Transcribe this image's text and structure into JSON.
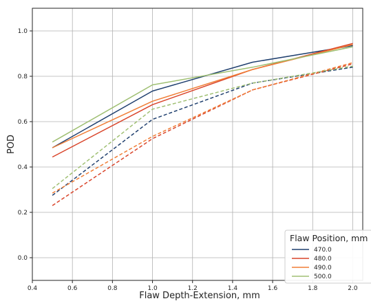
{
  "chart_data": {
    "type": "line",
    "xlabel": "Flaw Depth-Extension, mm",
    "ylabel": "POD",
    "xlim": [
      0.4,
      2.05
    ],
    "ylim": [
      -0.1,
      1.1
    ],
    "xticks": [
      0.4,
      0.6,
      0.8,
      1.0,
      1.2,
      1.4,
      1.6,
      1.8,
      2.0
    ],
    "xtick_labels": [
      "0.4",
      "0.6",
      "0.8",
      "1.0",
      "1.2",
      "1.4",
      "1.6",
      "1.8",
      "2.0"
    ],
    "yticks": [
      0.0,
      0.2,
      0.4,
      0.6,
      0.8,
      1.0
    ],
    "ytick_labels": [
      "0.0",
      "0.2",
      "0.4",
      "0.6",
      "0.8",
      "1.0"
    ],
    "grid": true,
    "legend": {
      "title": "Flaw Position, mm",
      "placement": "lower-right",
      "entries": [
        "470.0",
        "480.0",
        "490.0",
        "500.0"
      ]
    },
    "series": [
      {
        "name": "470.0",
        "color": "#1f3f6e",
        "style": "solid",
        "x": [
          0.5,
          1.0,
          1.5,
          2.0
        ],
        "y": [
          0.485,
          0.735,
          0.862,
          0.935
        ]
      },
      {
        "name": "480.0",
        "color": "#d9442a",
        "style": "solid",
        "x": [
          0.5,
          1.0,
          1.5,
          2.0
        ],
        "y": [
          0.444,
          0.675,
          0.83,
          0.945
        ]
      },
      {
        "name": "490.0",
        "color": "#f07d35",
        "style": "solid",
        "x": [
          0.5,
          1.0,
          1.5,
          2.0
        ],
        "y": [
          0.485,
          0.69,
          0.83,
          0.94
        ]
      },
      {
        "name": "500.0",
        "color": "#9fbf72",
        "style": "solid",
        "x": [
          0.5,
          1.0,
          1.5,
          2.0
        ],
        "y": [
          0.51,
          0.762,
          0.84,
          0.93
        ]
      },
      {
        "name": "470.0",
        "color": "#1f3f6e",
        "style": "dashed",
        "x": [
          0.5,
          1.0,
          1.5,
          2.0
        ],
        "y": [
          0.275,
          0.61,
          0.77,
          0.84
        ]
      },
      {
        "name": "480.0",
        "color": "#d9442a",
        "style": "dashed",
        "x": [
          0.5,
          1.0,
          1.5,
          2.0
        ],
        "y": [
          0.23,
          0.525,
          0.74,
          0.855
        ]
      },
      {
        "name": "490.0",
        "color": "#f07d35",
        "style": "dashed",
        "x": [
          0.5,
          1.0,
          1.5,
          2.0
        ],
        "y": [
          0.285,
          0.535,
          0.74,
          0.86
        ]
      },
      {
        "name": "500.0",
        "color": "#9fbf72",
        "style": "dashed",
        "x": [
          0.5,
          1.0,
          1.5,
          2.0
        ],
        "y": [
          0.305,
          0.655,
          0.77,
          0.845
        ]
      }
    ]
  }
}
